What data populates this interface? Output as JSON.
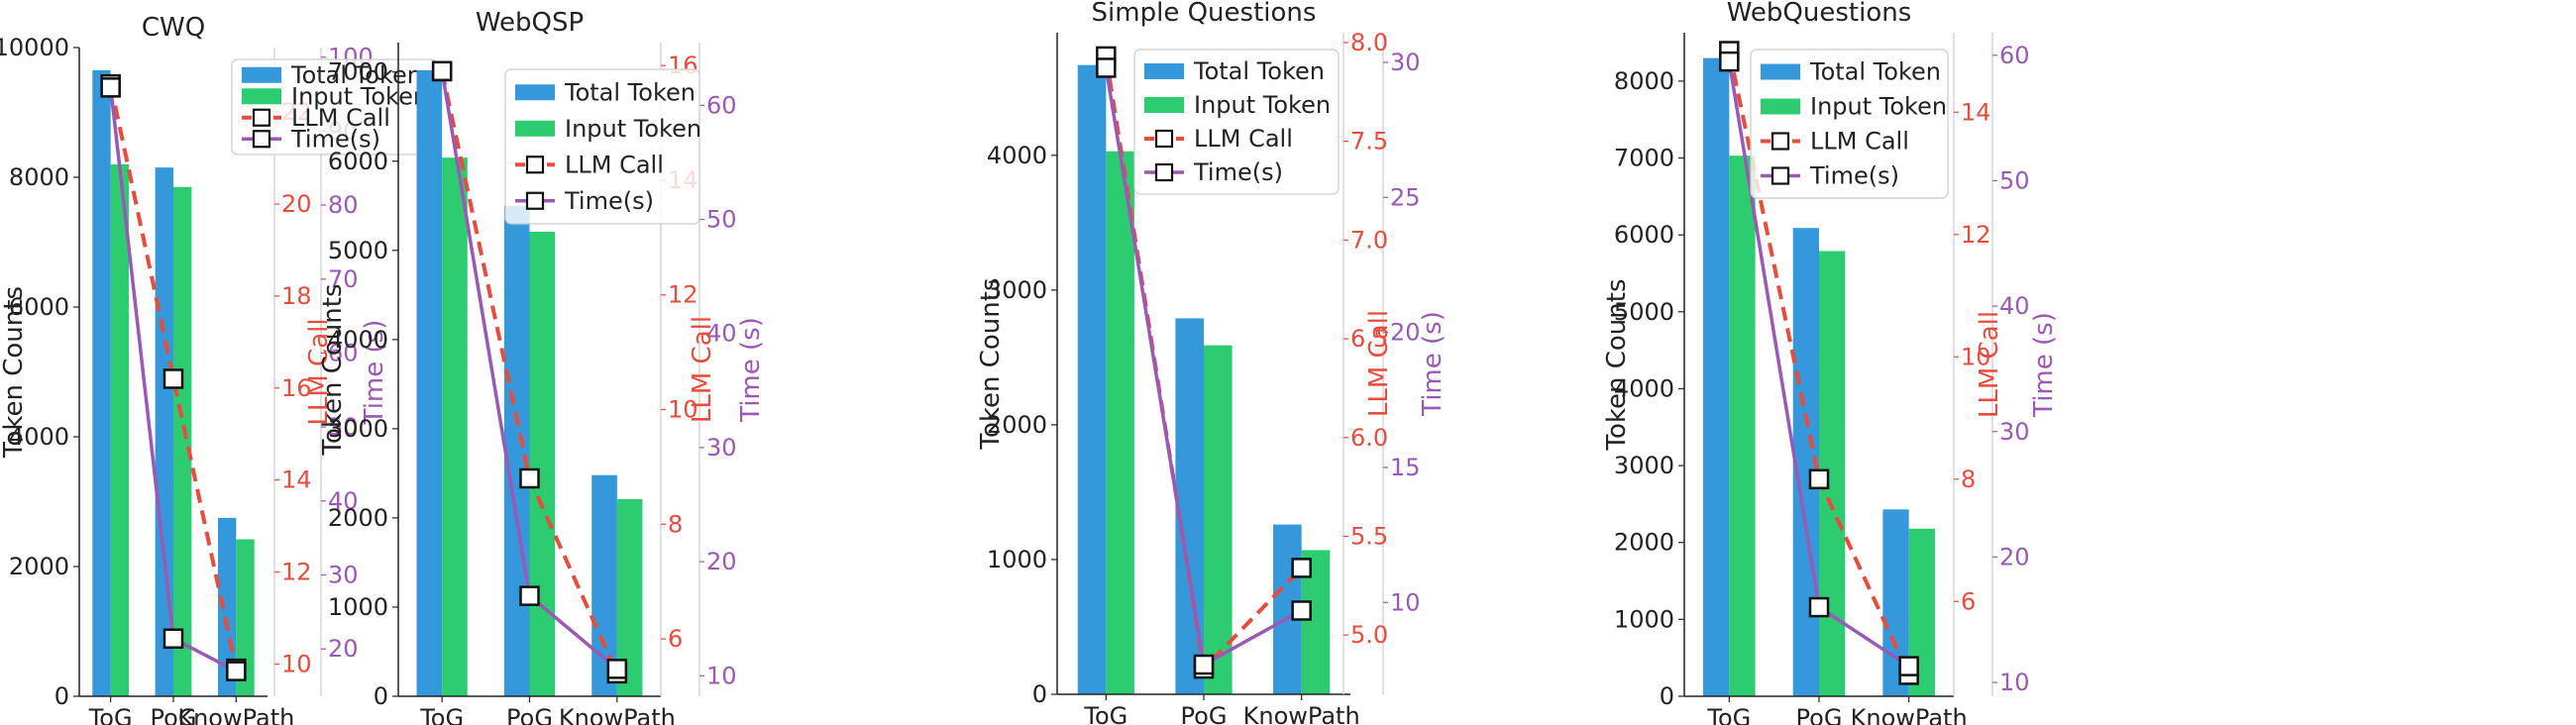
{
  "colors": {
    "total_token": "#3498db",
    "input_token": "#2ecc71",
    "llm_call": "#e74c3c",
    "time": "#9b59b6"
  },
  "labels": {
    "y_left": "Token Counts",
    "y_llm": "LLM Call",
    "y_time": "Time (s)"
  },
  "legend": [
    "Total Token",
    "Input Token",
    "LLM Call",
    "Time(s)"
  ],
  "chart_data": [
    {
      "type": "bar",
      "title": "CWQ",
      "categories": [
        "ToG",
        "PoG",
        "KnowPath"
      ],
      "series": [
        {
          "name": "Total Token",
          "axis": "left",
          "kind": "bar",
          "values": [
            9650,
            8150,
            2750
          ]
        },
        {
          "name": "Input Token",
          "axis": "left",
          "kind": "bar",
          "values": [
            8200,
            7850,
            2420
          ]
        },
        {
          "name": "LLM Call",
          "axis": "llm",
          "kind": "line-dashed",
          "values": [
            22.6,
            16.2,
            9.9
          ]
        },
        {
          "name": "Time(s)",
          "axis": "time",
          "kind": "line",
          "values": [
            95.9,
            21.4,
            17.0
          ]
        }
      ],
      "y_left": {
        "range": [
          0,
          10000
        ],
        "ticks": [
          "0",
          "2000",
          "4000",
          "6000",
          "8000",
          "10000"
        ]
      },
      "y_llm": {
        "range": [
          9.3,
          23.4
        ],
        "ticks": [
          "10",
          "12",
          "14",
          "16",
          "18",
          "20",
          "22"
        ]
      },
      "y_time": {
        "range": [
          13.6,
          101.3
        ],
        "ticks": [
          "20",
          "30",
          "40",
          "50",
          "60",
          "70",
          "80",
          "90",
          "100"
        ]
      },
      "legend_position": "upper-right"
    },
    {
      "type": "bar",
      "title": "WebQSP",
      "categories": [
        "ToG",
        "PoG",
        "KnowPath"
      ],
      "series": [
        {
          "name": "Total Token",
          "axis": "left",
          "kind": "bar",
          "values": [
            7020,
            5500,
            2480
          ]
        },
        {
          "name": "Input Token",
          "axis": "left",
          "kind": "bar",
          "values": [
            6040,
            5210,
            2210
          ]
        },
        {
          "name": "LLM Call",
          "axis": "llm",
          "kind": "line-dashed",
          "values": [
            15.9,
            8.8,
            5.4
          ]
        },
        {
          "name": "Time(s)",
          "axis": "time",
          "kind": "line",
          "values": [
            63.0,
            17.0,
            10.6
          ]
        }
      ],
      "y_left": {
        "range": [
          0,
          7330
        ],
        "ticks": [
          "0",
          "1000",
          "2000",
          "3000",
          "4000",
          "5000",
          "6000",
          "7000"
        ]
      },
      "y_llm": {
        "range": [
          5.0,
          16.4
        ],
        "ticks": [
          "6",
          "8",
          "10",
          "12",
          "14",
          "16"
        ]
      },
      "y_time": {
        "range": [
          8.2,
          65.5
        ],
        "ticks": [
          "10",
          "20",
          "30",
          "40",
          "50",
          "60"
        ]
      },
      "legend_position": "upper-right"
    },
    {
      "type": "bar",
      "title": "Simple Questions",
      "categories": [
        "ToG",
        "PoG",
        "KnowPath"
      ],
      "series": [
        {
          "name": "Total Token",
          "axis": "left",
          "kind": "bar",
          "values": [
            4670,
            2790,
            1260
          ]
        },
        {
          "name": "Input Token",
          "axis": "left",
          "kind": "bar",
          "values": [
            4030,
            2590,
            1070
          ]
        },
        {
          "name": "LLM Call",
          "axis": "llm",
          "kind": "line-dashed",
          "values": [
            7.93,
            4.83,
            5.34
          ]
        },
        {
          "name": "Time(s)",
          "axis": "time",
          "kind": "line",
          "values": [
            29.8,
            7.7,
            9.7
          ]
        }
      ],
      "y_left": {
        "range": [
          0,
          4910
        ],
        "ticks": [
          "0",
          "1000",
          "2000",
          "3000",
          "4000"
        ]
      },
      "y_llm": {
        "range": [
          4.7,
          8.05
        ],
        "ticks": [
          "5.0",
          "5.5",
          "6.0",
          "6.5",
          "7.0",
          "7.5",
          "8.0"
        ]
      },
      "y_time": {
        "range": [
          6.6,
          31.1
        ],
        "ticks": [
          "10",
          "15",
          "20",
          "25",
          "30"
        ]
      },
      "legend_position": "upper-right"
    },
    {
      "type": "bar",
      "title": "WebQuestions",
      "categories": [
        "ToG",
        "PoG",
        "KnowPath"
      ],
      "series": [
        {
          "name": "Total Token",
          "axis": "left",
          "kind": "bar",
          "values": [
            8300,
            6090,
            2430
          ]
        },
        {
          "name": "Input Token",
          "axis": "left",
          "kind": "bar",
          "values": [
            7030,
            5790,
            2180
          ]
        },
        {
          "name": "LLM Call",
          "axis": "llm",
          "kind": "line-dashed",
          "values": [
            15.0,
            8.0,
            4.8
          ]
        },
        {
          "name": "Time(s)",
          "axis": "time",
          "kind": "line",
          "values": [
            59.5,
            16.0,
            11.3
          ]
        }
      ],
      "y_left": {
        "range": [
          0,
          8630
        ],
        "ticks": [
          "0",
          "1000",
          "2000",
          "3000",
          "4000",
          "5000",
          "6000",
          "7000",
          "8000"
        ]
      },
      "y_llm": {
        "range": [
          4.45,
          15.3
        ],
        "ticks": [
          "6",
          "8",
          "10",
          "12",
          "14"
        ]
      },
      "y_time": {
        "range": [
          8.9,
          61.8
        ],
        "ticks": [
          "10",
          "20",
          "30",
          "40",
          "50",
          "60"
        ]
      },
      "legend_position": "upper-right"
    }
  ]
}
